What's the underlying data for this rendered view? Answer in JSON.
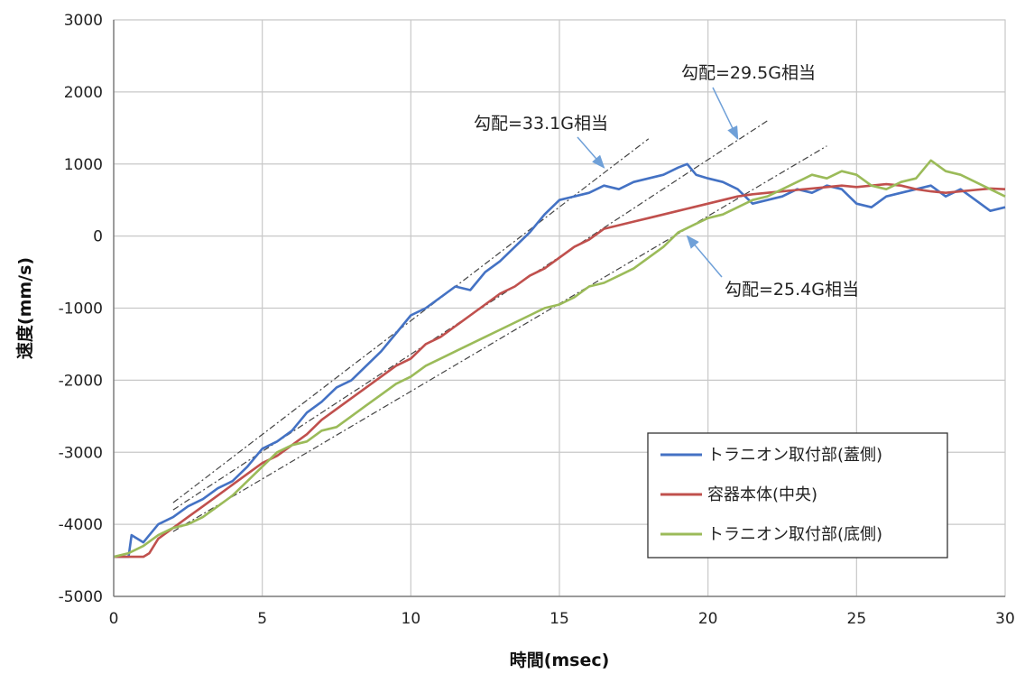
{
  "chart_data": {
    "type": "line",
    "title": "",
    "xlabel": "時間(msec)",
    "ylabel": "速度(mm/s)",
    "xlim": [
      0,
      30
    ],
    "ylim": [
      -5000,
      3000
    ],
    "x_ticks": [
      "0",
      "5",
      "10",
      "15",
      "20",
      "25",
      "30"
    ],
    "y_ticks": [
      "3000",
      "2000",
      "1000",
      "0",
      "-1000",
      "-2000",
      "-3000",
      "-4000",
      "-5000"
    ],
    "grid": true,
    "legend_position": "bottom-right",
    "series": [
      {
        "name": "トラニオン取付部(蓋側)",
        "color": "#4472C4",
        "x": [
          0,
          0.5,
          0.6,
          1,
          1.5,
          2,
          2.5,
          3,
          3.5,
          4,
          4.5,
          5,
          5.5,
          6,
          6.5,
          7,
          7.5,
          8,
          8.5,
          9,
          9.5,
          10,
          10.5,
          11,
          11.5,
          12,
          12.5,
          13,
          13.5,
          14,
          14.5,
          15,
          15.5,
          16,
          16.5,
          17,
          17.5,
          18,
          18.5,
          19,
          19.3,
          19.6,
          20,
          20.5,
          21,
          21.5,
          22,
          22.5,
          23,
          23.5,
          24,
          24.5,
          25,
          25.5,
          26,
          26.5,
          27,
          27.5,
          28,
          28.5,
          29,
          29.5,
          30
        ],
        "values": [
          -4450,
          -4450,
          -4150,
          -4250,
          -4000,
          -3900,
          -3750,
          -3650,
          -3500,
          -3400,
          -3200,
          -2950,
          -2850,
          -2700,
          -2450,
          -2300,
          -2100,
          -2000,
          -1800,
          -1600,
          -1350,
          -1100,
          -1000,
          -850,
          -700,
          -750,
          -500,
          -350,
          -150,
          50,
          300,
          500,
          550,
          600,
          700,
          650,
          750,
          800,
          850,
          950,
          1000,
          850,
          800,
          750,
          650,
          450,
          500,
          550,
          650,
          600,
          700,
          650,
          450,
          400,
          550,
          600,
          650,
          700,
          550,
          650,
          500,
          350,
          400
        ]
      },
      {
        "name": "容器本体(中央)",
        "color": "#C0504D",
        "x": [
          0,
          0.5,
          1,
          1.2,
          1.5,
          2,
          2.5,
          3,
          3.5,
          4,
          4.5,
          5,
          5.5,
          6,
          6.5,
          7,
          7.5,
          8,
          8.5,
          9,
          9.5,
          10,
          10.5,
          11,
          11.5,
          12,
          12.5,
          13,
          13.5,
          14,
          14.5,
          15,
          15.5,
          16,
          16.5,
          17,
          17.5,
          18,
          18.5,
          19,
          19.5,
          20,
          20.5,
          21,
          21.5,
          22,
          22.5,
          23,
          23.5,
          24,
          24.5,
          25,
          25.5,
          26,
          26.5,
          27,
          27.5,
          28,
          28.5,
          29,
          29.5,
          30
        ],
        "values": [
          -4450,
          -4450,
          -4450,
          -4400,
          -4200,
          -4050,
          -3900,
          -3750,
          -3600,
          -3450,
          -3300,
          -3150,
          -3050,
          -2900,
          -2750,
          -2550,
          -2400,
          -2250,
          -2100,
          -1950,
          -1800,
          -1700,
          -1500,
          -1400,
          -1250,
          -1100,
          -950,
          -800,
          -700,
          -550,
          -450,
          -300,
          -150,
          -50,
          100,
          150,
          200,
          250,
          300,
          350,
          400,
          450,
          500,
          550,
          580,
          600,
          620,
          640,
          660,
          680,
          700,
          680,
          700,
          720,
          700,
          650,
          620,
          600,
          620,
          640,
          660,
          650
        ]
      },
      {
        "name": "トラニオン取付部(底側)",
        "color": "#9BBB59",
        "x": [
          0,
          0.5,
          1,
          1.5,
          2,
          2.5,
          3,
          3.5,
          4,
          4.5,
          5,
          5.5,
          6,
          6.5,
          7,
          7.5,
          8,
          8.5,
          9,
          9.5,
          10,
          10.5,
          11,
          11.5,
          12,
          12.5,
          13,
          13.5,
          14,
          14.5,
          15,
          15.5,
          16,
          16.5,
          17,
          17.5,
          18,
          18.5,
          19,
          19.5,
          20,
          20.5,
          21,
          21.5,
          22,
          22.5,
          23,
          23.5,
          24,
          24.5,
          25,
          25.5,
          26,
          26.5,
          27,
          27.5,
          28,
          28.5,
          29,
          29.5,
          30
        ],
        "values": [
          -4450,
          -4400,
          -4300,
          -4150,
          -4050,
          -4000,
          -3900,
          -3750,
          -3600,
          -3400,
          -3200,
          -3000,
          -2900,
          -2850,
          -2700,
          -2650,
          -2500,
          -2350,
          -2200,
          -2050,
          -1950,
          -1800,
          -1700,
          -1600,
          -1500,
          -1400,
          -1300,
          -1200,
          -1100,
          -1000,
          -950,
          -850,
          -700,
          -650,
          -550,
          -450,
          -300,
          -150,
          50,
          150,
          250,
          300,
          400,
          500,
          550,
          650,
          750,
          850,
          800,
          900,
          850,
          700,
          650,
          750,
          800,
          1050,
          900,
          850,
          750,
          650,
          550
        ]
      }
    ],
    "annotations": [
      {
        "text": "勾配=33.1G相当",
        "arrow_to": [
          16.5,
          950
        ],
        "fit_line": {
          "x": [
            2,
            18
          ],
          "y": [
            -3700,
            1350
          ]
        }
      },
      {
        "text": "勾配=29.5G相当",
        "arrow_to": [
          21,
          1350
        ],
        "fit_line": {
          "x": [
            2,
            22
          ],
          "y": [
            -3800,
            1600
          ]
        }
      },
      {
        "text": "勾配=25.4G相当",
        "arrow_to": [
          19.3,
          0
        ],
        "fit_line": {
          "x": [
            2,
            24
          ],
          "y": [
            -4100,
            1250
          ]
        }
      }
    ]
  }
}
